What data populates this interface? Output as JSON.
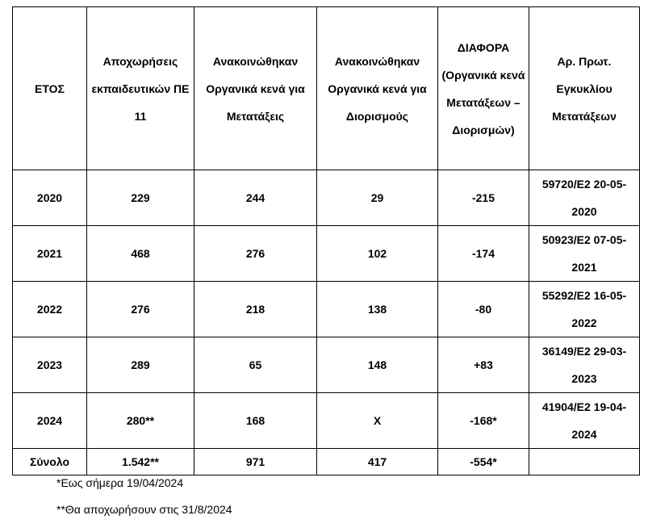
{
  "table": {
    "header": [
      "ΕΤΟΣ",
      "Αποχωρήσεις εκπαιδευτικών ΠΕ 11",
      "Ανακοινώθηκαν Οργανικά κενά για Μετατάξεις",
      "Ανακοινώθηκαν Οργανικά κενά για Διορισμούς",
      "ΔΙΑΦΟΡΑ (Οργανικά κενά Μετατάξεων – Διορισμών)",
      "Αρ. Πρωτ. Εγκυκλίου Μετατάξεων"
    ],
    "rows": [
      [
        "2020",
        "229",
        "244",
        "29",
        "-215",
        "59720/Ε2 20-05-2020"
      ],
      [
        "2021",
        "468",
        "276",
        "102",
        "-174",
        "50923/Ε2 07-05-2021"
      ],
      [
        "2022",
        "276",
        "218",
        "138",
        "-80",
        "55292/Ε2 16-05-2022"
      ],
      [
        "2023",
        "289",
        "65",
        "148",
        "+83",
        "36149/Ε2 29-03-2023"
      ],
      [
        "2024",
        "280**",
        "168",
        "Χ",
        "-168*",
        "41904/Ε2 19-04-2024"
      ]
    ],
    "total": [
      "Σύνολο",
      "1.542**",
      "971",
      "417",
      "-554*"
    ]
  },
  "footnotes": [
    "*Εως σήμερα 19/04/2024",
    "**Θα αποχωρήσουν στις 31/8/2024"
  ]
}
